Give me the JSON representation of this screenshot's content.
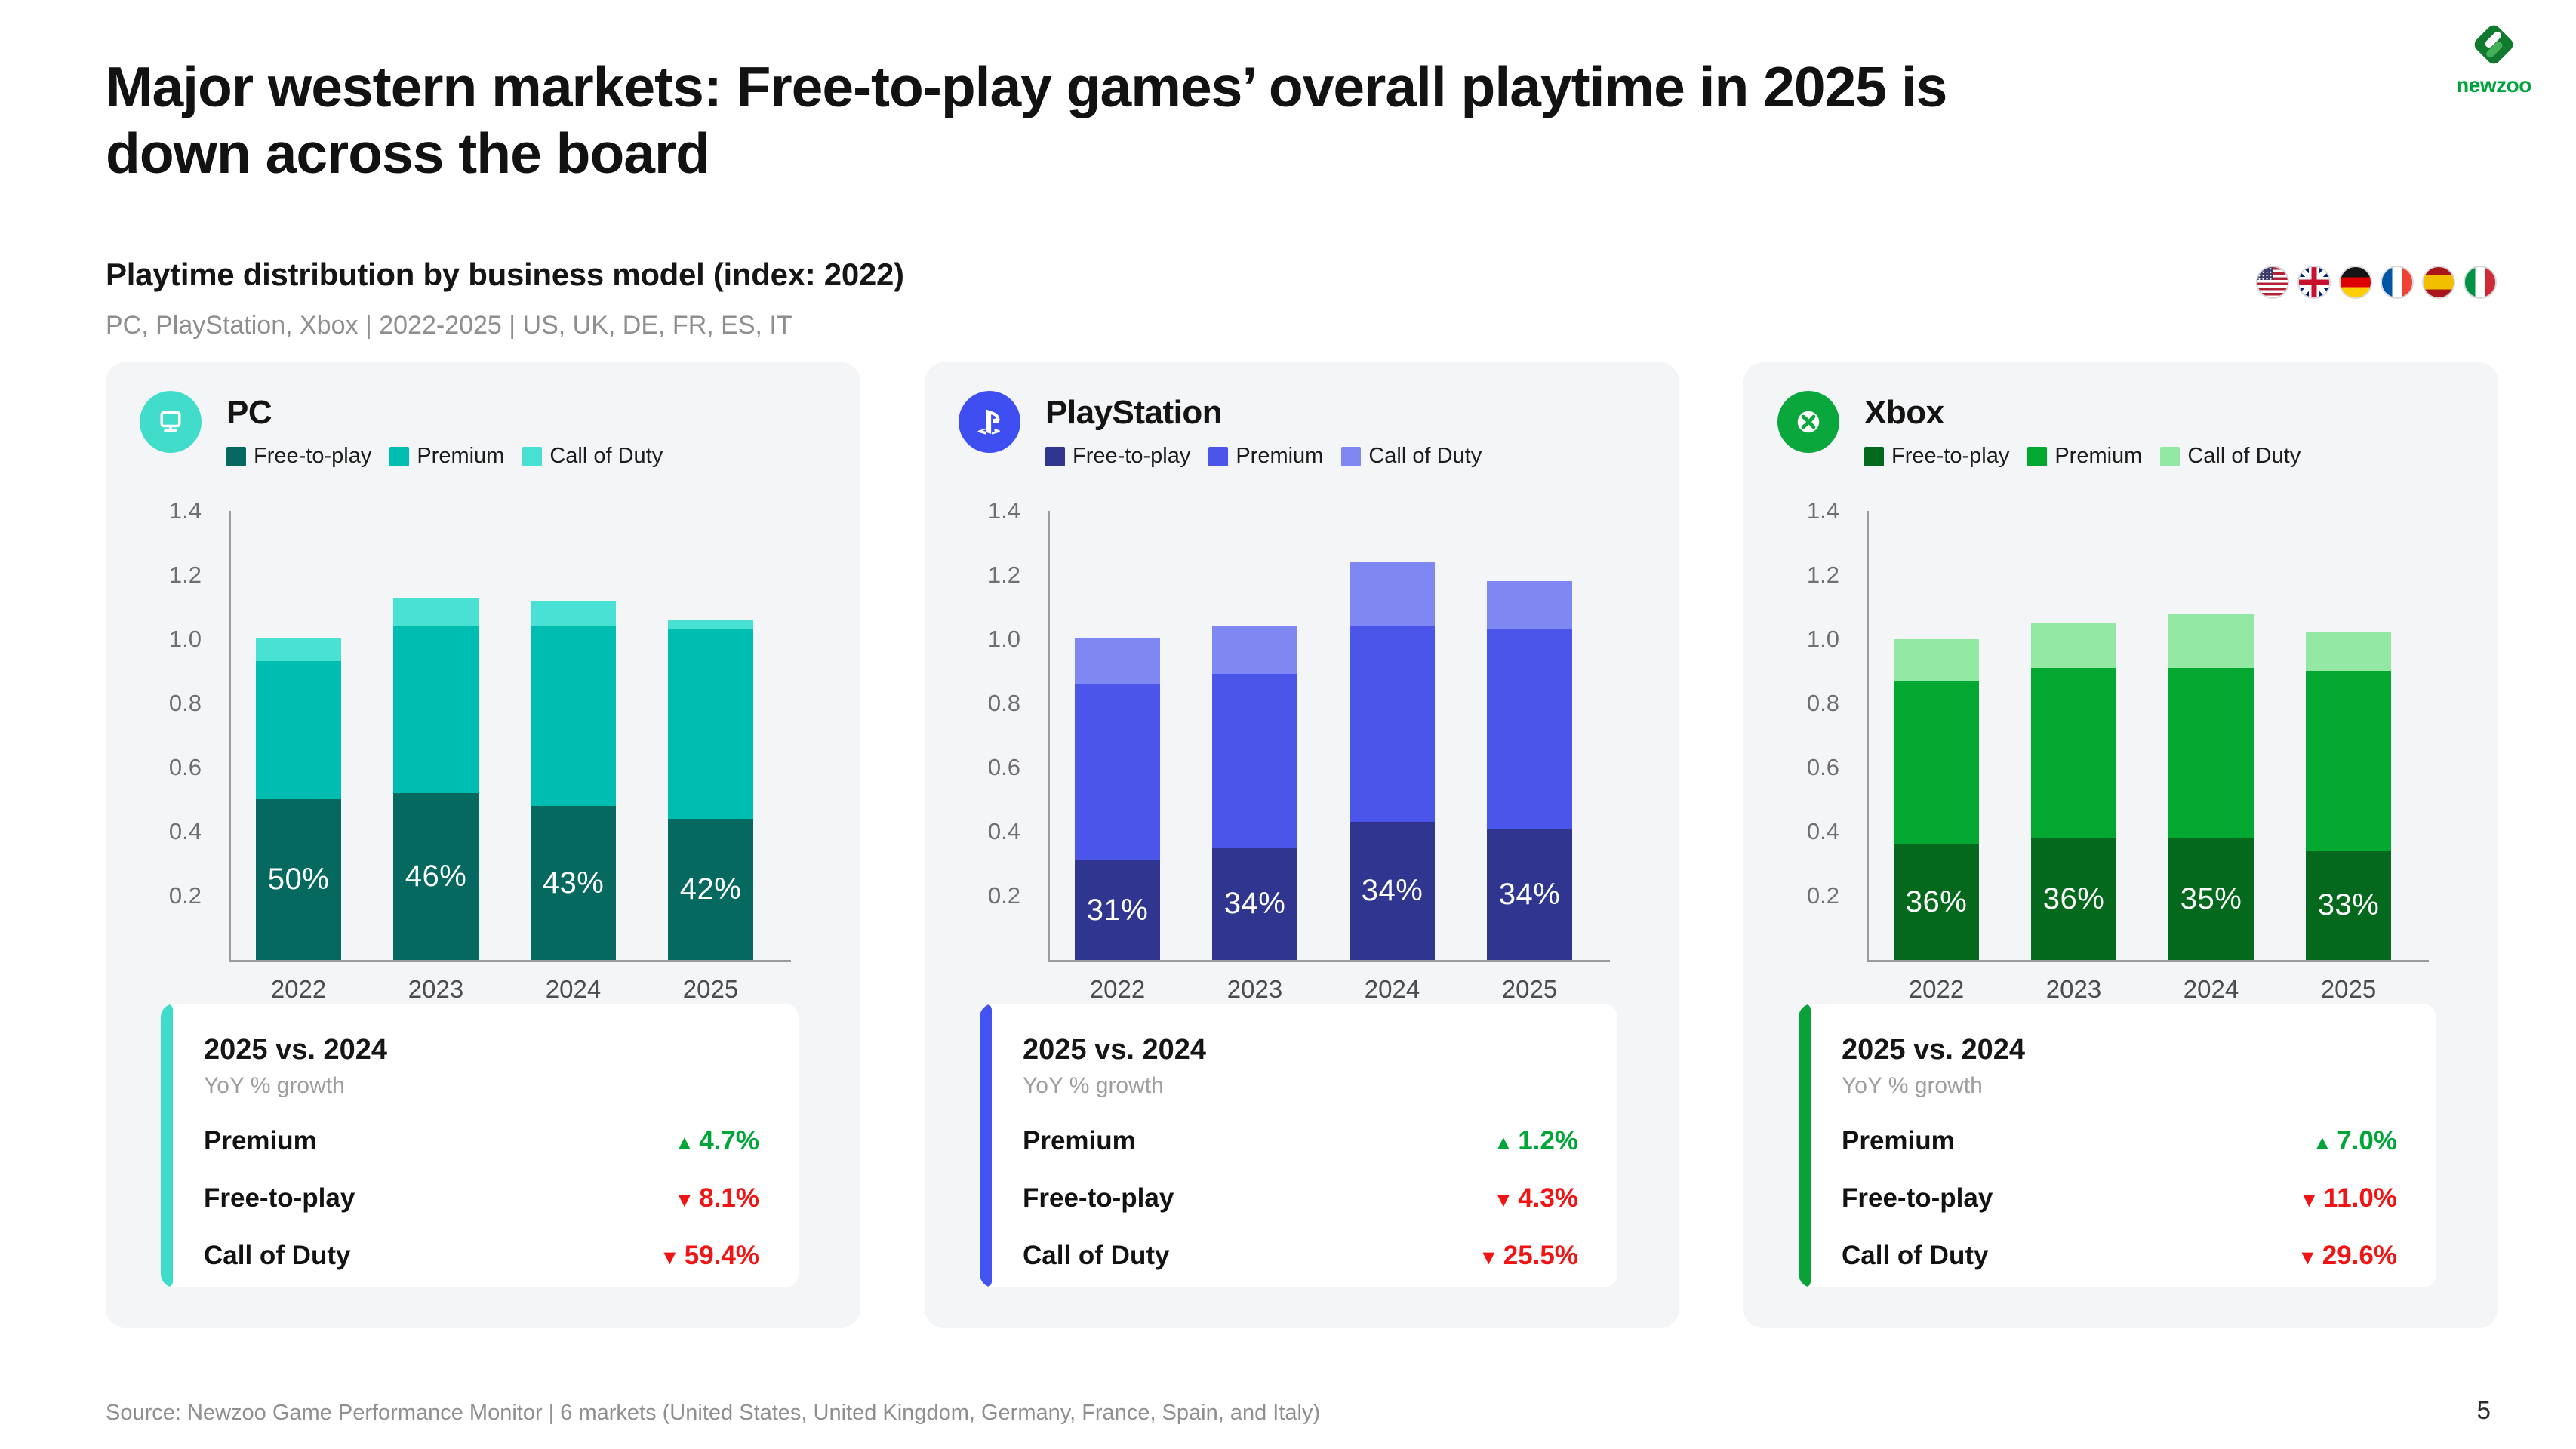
{
  "page": {
    "title_lines": [
      "Major western markets: Free-to-play games’ overall playtime in 2025 is",
      "down across the board"
    ],
    "subtitle": "Playtime distribution by business model (index: 2022)",
    "meta": "PC, PlayStation, Xbox | 2022-2025 | US, UK, DE, FR, ES, IT",
    "source": "Source: Newzoo Game Performance Monitor | 6 markets (United States, United Kingdom, Germany, France, Spain, and Italy)",
    "page_number": "5",
    "logo_text": "newzoo"
  },
  "flags": [
    {
      "id": "us",
      "name": "flag-us"
    },
    {
      "id": "uk",
      "name": "flag-uk"
    },
    {
      "id": "de",
      "name": "flag-de"
    },
    {
      "id": "fr",
      "name": "flag-fr"
    },
    {
      "id": "es",
      "name": "flag-es"
    },
    {
      "id": "it",
      "name": "flag-it"
    }
  ],
  "glyphs": {
    "up": "▲",
    "down": "▼"
  },
  "status_colors": {
    "up": "#00a538",
    "down": "#f11414"
  },
  "chart_data": [
    {
      "type": "bar",
      "stacked": true,
      "platform": "PC",
      "icon": "pc-monitor-icon",
      "icon_bg": "#42dcca",
      "categories": [
        "2022",
        "2023",
        "2024",
        "2025"
      ],
      "series": [
        {
          "name": "Free-to-play",
          "color": "#05695f",
          "values": [
            0.5,
            0.52,
            0.48,
            0.44
          ]
        },
        {
          "name": "Premium",
          "color": "#00bdb1",
          "values": [
            0.43,
            0.52,
            0.56,
            0.59
          ]
        },
        {
          "name": "Call of Duty",
          "color": "#49e1d3",
          "values": [
            0.07,
            0.09,
            0.08,
            0.03
          ]
        }
      ],
      "bar_labels": [
        "50%",
        "46%",
        "43%",
        "42%"
      ],
      "ylim": [
        0,
        1.4
      ],
      "yticks": [
        0.2,
        0.4,
        0.6,
        0.8,
        1.0,
        1.2,
        1.4
      ],
      "legend_position": "top",
      "summary": {
        "title": "2025 vs. 2024",
        "subtitle": "YoY % growth",
        "accent": "#3fdccb",
        "rows": [
          {
            "label": "Premium",
            "direction": "up",
            "value": "4.7%"
          },
          {
            "label": "Free-to-play",
            "direction": "down",
            "value": "8.1%"
          },
          {
            "label": "Call of Duty",
            "direction": "down",
            "value": "59.4%"
          }
        ]
      }
    },
    {
      "type": "bar",
      "stacked": true,
      "platform": "PlayStation",
      "icon": "playstation-icon",
      "icon_bg": "#3e4ef0",
      "categories": [
        "2022",
        "2023",
        "2024",
        "2025"
      ],
      "series": [
        {
          "name": "Free-to-play",
          "color": "#30368f",
          "values": [
            0.31,
            0.35,
            0.43,
            0.41
          ]
        },
        {
          "name": "Premium",
          "color": "#4b55ea",
          "values": [
            0.55,
            0.54,
            0.61,
            0.62
          ]
        },
        {
          "name": "Call of Duty",
          "color": "#7f88f2",
          "values": [
            0.14,
            0.15,
            0.2,
            0.15
          ]
        }
      ],
      "bar_labels": [
        "31%",
        "34%",
        "34%",
        "34%"
      ],
      "ylim": [
        0,
        1.4
      ],
      "yticks": [
        0.2,
        0.4,
        0.6,
        0.8,
        1.0,
        1.2,
        1.4
      ],
      "legend_position": "top",
      "summary": {
        "title": "2025 vs. 2024",
        "subtitle": "YoY % growth",
        "accent": "#4353ef",
        "rows": [
          {
            "label": "Premium",
            "direction": "up",
            "value": "1.2%"
          },
          {
            "label": "Free-to-play",
            "direction": "down",
            "value": "4.3%"
          },
          {
            "label": "Call of Duty",
            "direction": "down",
            "value": "25.5%"
          }
        ]
      }
    },
    {
      "type": "bar",
      "stacked": true,
      "platform": "Xbox",
      "icon": "xbox-icon",
      "icon_bg": "#0aa73d",
      "categories": [
        "2022",
        "2023",
        "2024",
        "2025"
      ],
      "series": [
        {
          "name": "Free-to-play",
          "color": "#04691d",
          "values": [
            0.36,
            0.38,
            0.38,
            0.34
          ]
        },
        {
          "name": "Premium",
          "color": "#02a830",
          "values": [
            0.51,
            0.53,
            0.53,
            0.56
          ]
        },
        {
          "name": "Call of Duty",
          "color": "#93e9a3",
          "values": [
            0.13,
            0.14,
            0.17,
            0.12
          ]
        }
      ],
      "bar_labels": [
        "36%",
        "36%",
        "35%",
        "33%"
      ],
      "ylim": [
        0,
        1.4
      ],
      "yticks": [
        0.2,
        0.4,
        0.6,
        0.8,
        1.0,
        1.2,
        1.4
      ],
      "legend_position": "top",
      "summary": {
        "title": "2025 vs. 2024",
        "subtitle": "YoY % growth",
        "accent": "#09a138",
        "rows": [
          {
            "label": "Premium",
            "direction": "up",
            "value": "7.0%"
          },
          {
            "label": "Free-to-play",
            "direction": "down",
            "value": "11.0%"
          },
          {
            "label": "Call of Duty",
            "direction": "down",
            "value": "29.6%"
          }
        ]
      }
    }
  ]
}
